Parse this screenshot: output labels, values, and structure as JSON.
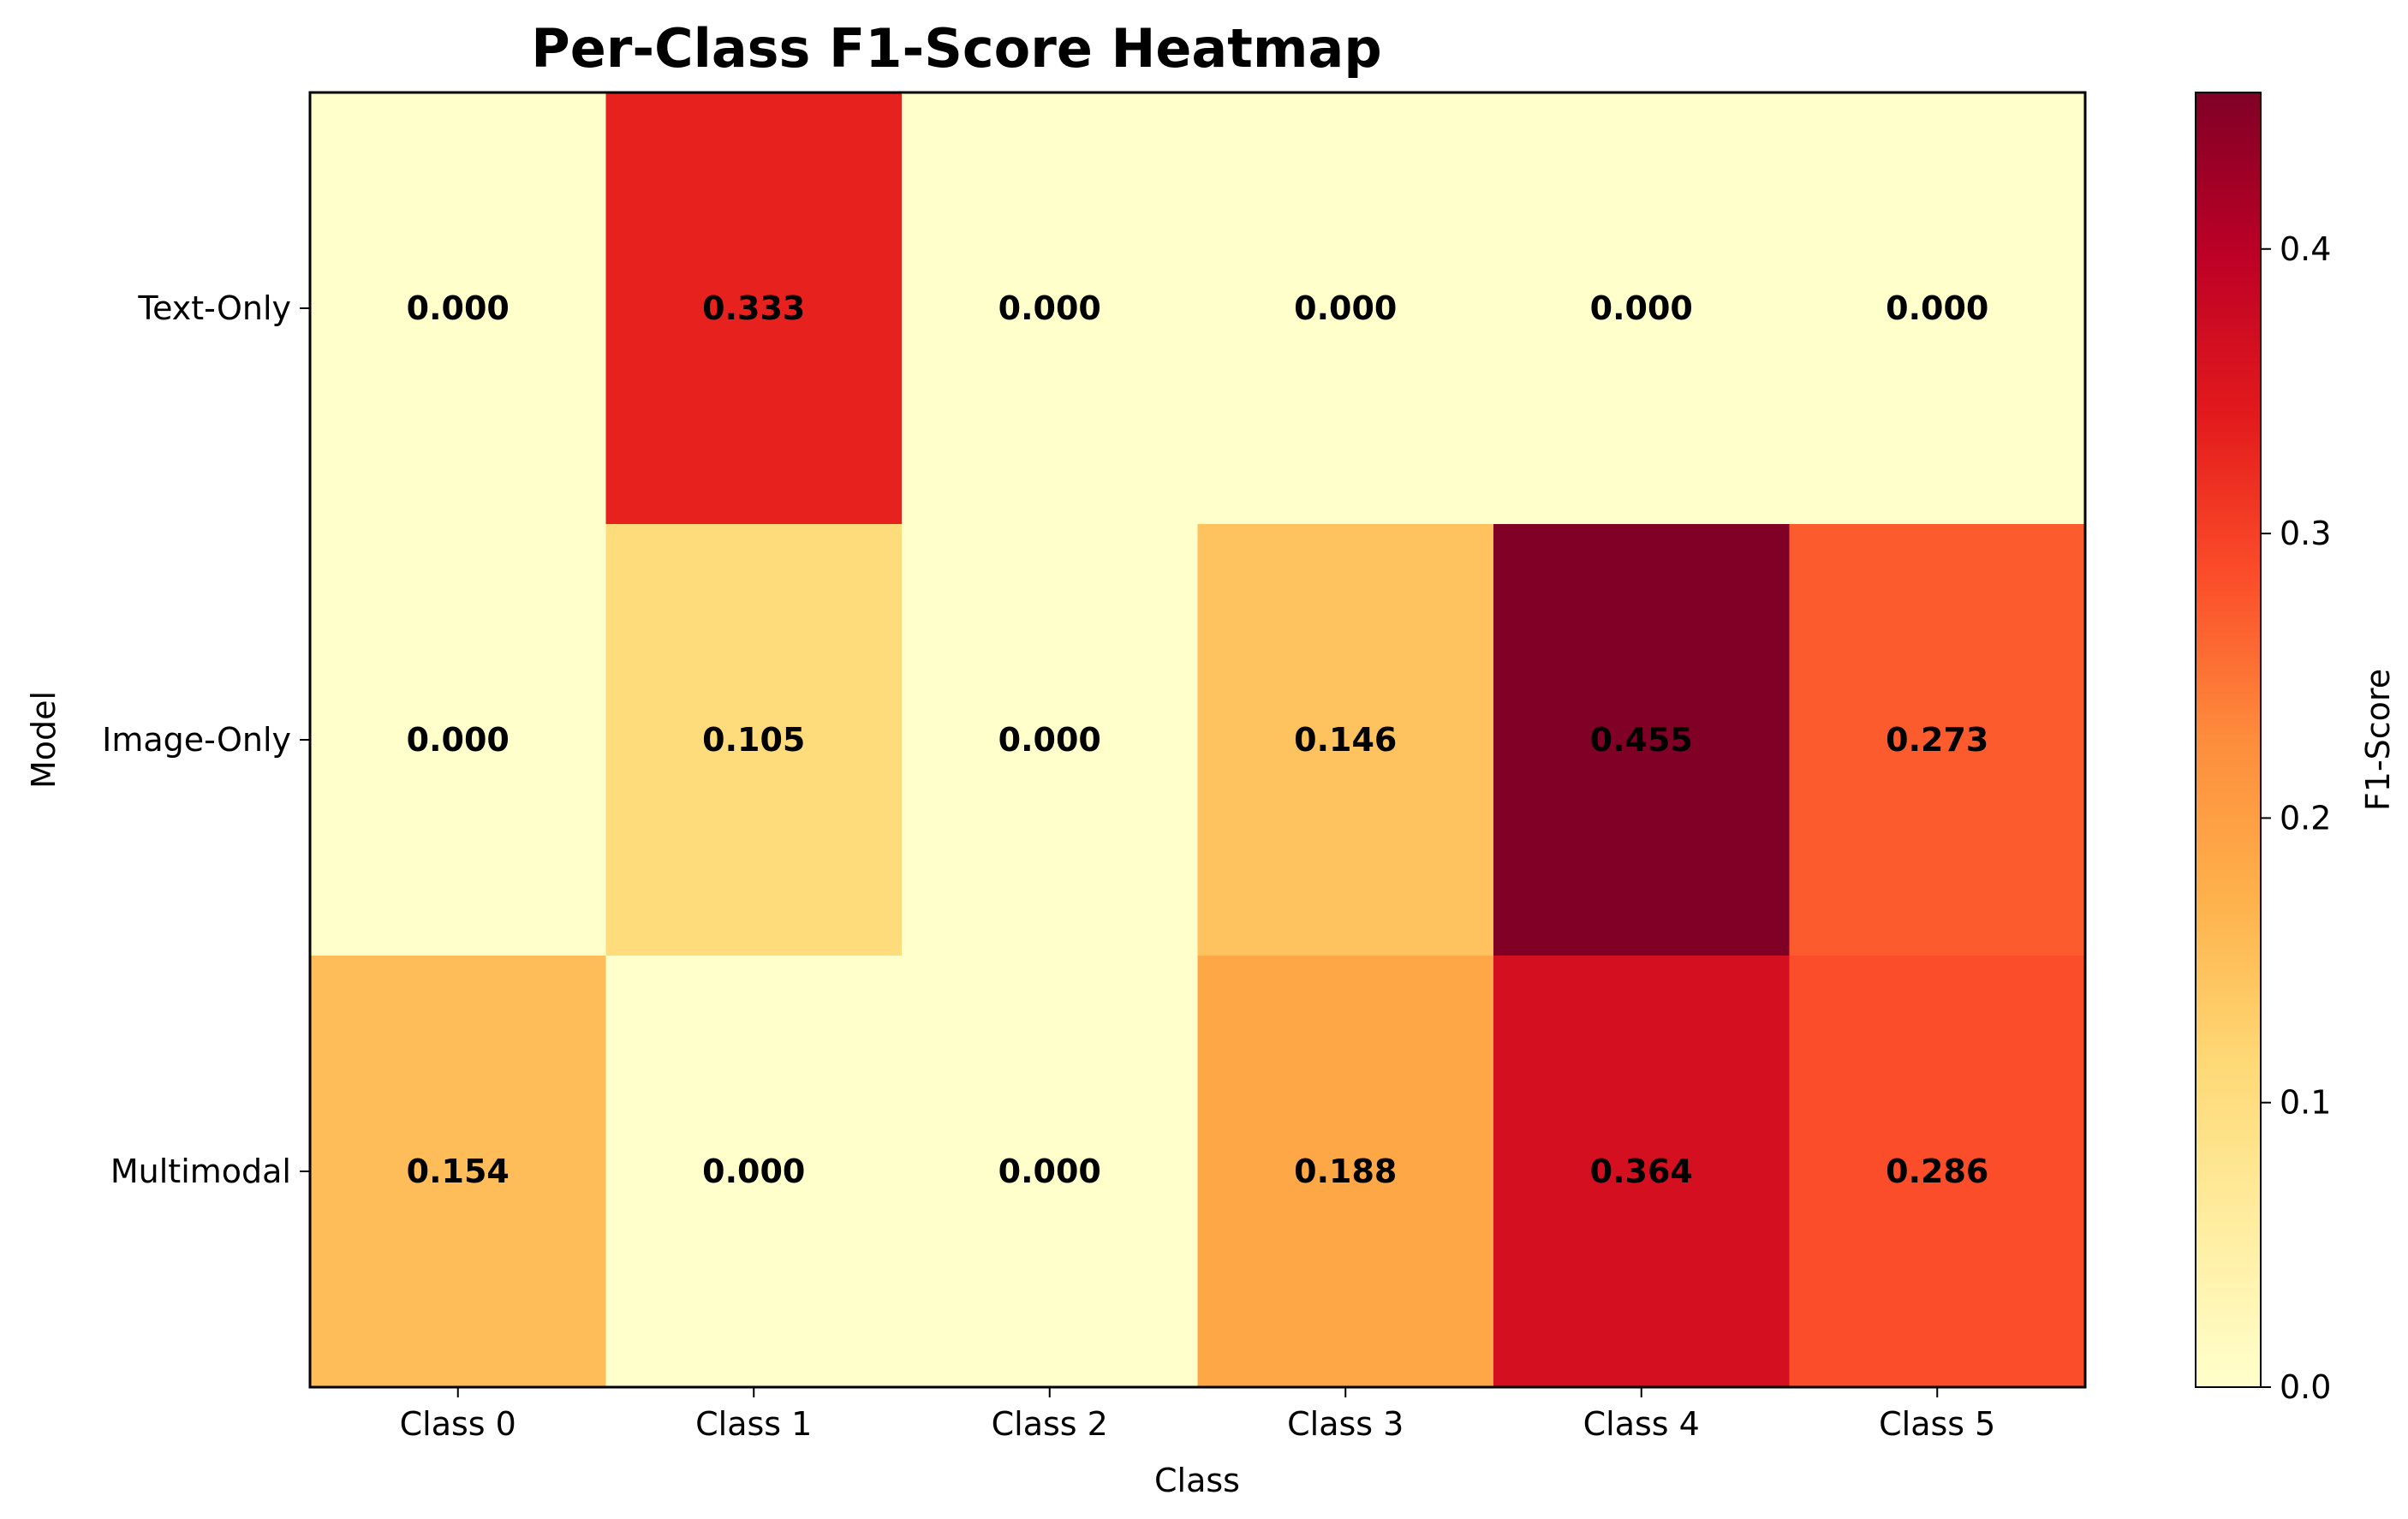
{
  "chart_data": {
    "type": "heatmap",
    "title": "Per-Class F1-Score Heatmap",
    "xlabel": "Class",
    "ylabel": "Model",
    "x_categories": [
      "Class 0",
      "Class 1",
      "Class 2",
      "Class 3",
      "Class 4",
      "Class 5"
    ],
    "y_categories": [
      "Text-Only",
      "Image-Only",
      "Multimodal"
    ],
    "values": [
      [
        0.0,
        0.333,
        0.0,
        0.0,
        0.0,
        0.0
      ],
      [
        0.0,
        0.105,
        0.0,
        0.146,
        0.455,
        0.273
      ],
      [
        0.154,
        0.0,
        0.0,
        0.188,
        0.364,
        0.286
      ]
    ],
    "value_labels": [
      [
        "0.000",
        "0.333",
        "0.000",
        "0.000",
        "0.000",
        "0.000"
      ],
      [
        "0.000",
        "0.105",
        "0.000",
        "0.146",
        "0.455",
        "0.273"
      ],
      [
        "0.154",
        "0.000",
        "0.000",
        "0.188",
        "0.364",
        "0.286"
      ]
    ],
    "colormap": "YlOrRd",
    "colorbar": {
      "label": "F1-Score",
      "range": [
        0,
        0.455
      ],
      "ticks": [
        0.0,
        0.1,
        0.2,
        0.3,
        0.4
      ],
      "tick_labels": [
        "0.0",
        "0.1",
        "0.2",
        "0.3",
        "0.4"
      ]
    },
    "colors": {
      "cmap_stops": [
        "#ffffcc",
        "#ffeda0",
        "#fed976",
        "#feb24c",
        "#fd8d3c",
        "#fc4e2a",
        "#e31a1c",
        "#bd0026",
        "#800026"
      ]
    },
    "grid": false
  }
}
